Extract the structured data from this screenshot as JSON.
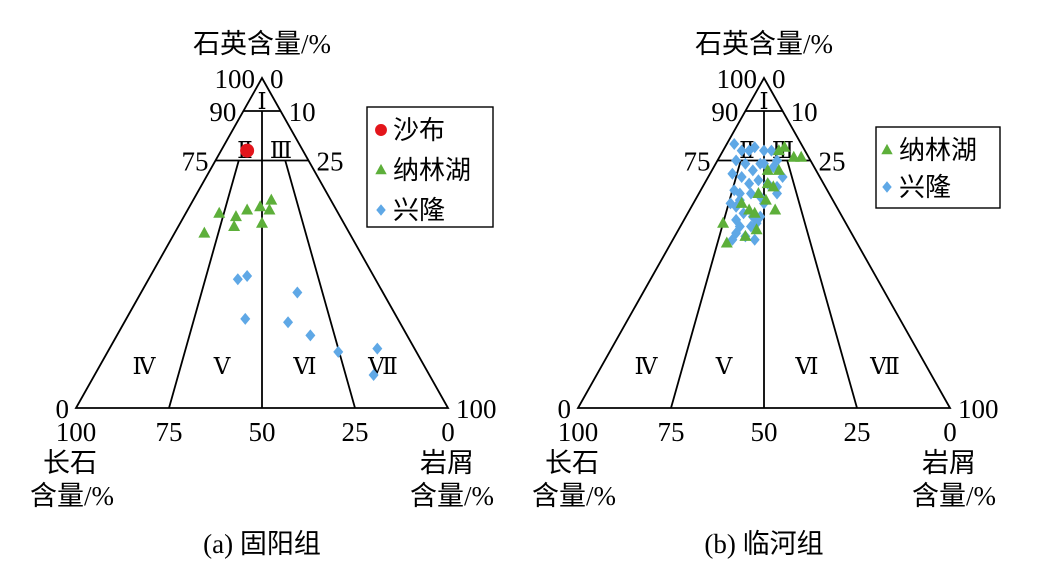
{
  "chart_data": [
    {
      "type": "scatter",
      "projection": "ternary",
      "caption": "(a) 固阳组",
      "apex_label": "石英含量/%",
      "left_label": [
        "长石",
        "含量/%"
      ],
      "right_label": [
        "岩屑",
        "含量/%"
      ],
      "left_ticks": [
        {
          "q": 100,
          "label": "100"
        },
        {
          "q": 90,
          "label": "90"
        },
        {
          "q": 75,
          "label": "75"
        },
        {
          "q": 0,
          "label": "0"
        }
      ],
      "right_ticks": [
        {
          "q": 100,
          "label": "0"
        },
        {
          "q": 90,
          "label": "10"
        },
        {
          "q": 75,
          "label": "25"
        },
        {
          "q": 0,
          "label": "100"
        }
      ],
      "bottom_ticks": [
        {
          "f": 100,
          "label": "100"
        },
        {
          "f": 75,
          "label": "75"
        },
        {
          "f": 50,
          "label": "50"
        },
        {
          "f": 25,
          "label": "25"
        },
        {
          "f": 0,
          "label": "0"
        }
      ],
      "quartz_boundaries": [
        90,
        75
      ],
      "bottom_dividers": [
        75,
        50,
        25
      ],
      "regions": [
        "Ⅰ",
        "Ⅱ",
        "Ⅲ",
        "Ⅳ",
        "Ⅴ",
        "Ⅵ",
        "Ⅶ"
      ],
      "legend_position": "top-right",
      "series": [
        {
          "name": "沙布",
          "marker": "circle",
          "color": "#e3151b",
          "points": [
            {
              "q": 78,
              "f": 15,
              "l": 7
            }
          ]
        },
        {
          "name": "纳林湖",
          "marker": "triangle",
          "color": "#5daf3a",
          "points": [
            {
              "q": 59,
              "f": 32,
              "l": 9
            },
            {
              "q": 58,
              "f": 28,
              "l": 14
            },
            {
              "q": 60,
              "f": 24,
              "l": 16
            },
            {
              "q": 61,
              "f": 20,
              "l": 19
            },
            {
              "q": 63,
              "f": 16,
              "l": 21
            },
            {
              "q": 55,
              "f": 30,
              "l": 15
            },
            {
              "q": 56,
              "f": 22,
              "l": 22
            },
            {
              "q": 53,
              "f": 39,
              "l": 8
            },
            {
              "q": 60,
              "f": 18,
              "l": 22
            }
          ]
        },
        {
          "name": "兴隆",
          "marker": "diamond",
          "color": "#5fa8e6",
          "points": [
            {
              "q": 39,
              "f": 37,
              "l": 24
            },
            {
              "q": 40,
              "f": 34,
              "l": 26
            },
            {
              "q": 35,
              "f": 23,
              "l": 42
            },
            {
              "q": 27,
              "f": 41,
              "l": 32
            },
            {
              "q": 26,
              "f": 30,
              "l": 44
            },
            {
              "q": 22,
              "f": 26,
              "l": 52
            },
            {
              "q": 17,
              "f": 21,
              "l": 62
            },
            {
              "q": 18,
              "f": 10,
              "l": 72
            },
            {
              "q": 10,
              "f": 15,
              "l": 75
            }
          ]
        }
      ]
    },
    {
      "type": "scatter",
      "projection": "ternary",
      "caption": "(b) 临河组",
      "apex_label": "石英含量/%",
      "left_label": [
        "长石",
        "含量/%"
      ],
      "right_label": [
        "岩屑",
        "含量/%"
      ],
      "left_ticks": [
        {
          "q": 100,
          "label": "100"
        },
        {
          "q": 90,
          "label": "90"
        },
        {
          "q": 75,
          "label": "75"
        },
        {
          "q": 0,
          "label": "0"
        }
      ],
      "right_ticks": [
        {
          "q": 100,
          "label": "0"
        },
        {
          "q": 90,
          "label": "10"
        },
        {
          "q": 75,
          "label": "25"
        },
        {
          "q": 0,
          "label": "100"
        }
      ],
      "bottom_ticks": [
        {
          "f": 100,
          "label": "100"
        },
        {
          "f": 75,
          "label": "75"
        },
        {
          "f": 50,
          "label": "50"
        },
        {
          "f": 25,
          "label": "25"
        },
        {
          "f": 0,
          "label": "0"
        }
      ],
      "quartz_boundaries": [
        90,
        75
      ],
      "bottom_dividers": [
        75,
        50,
        25
      ],
      "regions": [
        "Ⅰ",
        "Ⅱ",
        "Ⅲ",
        "Ⅳ",
        "Ⅴ",
        "Ⅵ",
        "Ⅶ"
      ],
      "legend_position": "top-right",
      "series": [
        {
          "name": "纳林湖",
          "marker": "triangle",
          "color": "#5daf3a",
          "points": [
            {
              "q": 78,
              "f": 7,
              "l": 15
            },
            {
              "q": 79,
              "f": 5,
              "l": 16
            },
            {
              "q": 76,
              "f": 2,
              "l": 22
            },
            {
              "q": 76,
              "f": 4,
              "l": 20
            },
            {
              "q": 72,
              "f": 13,
              "l": 15
            },
            {
              "q": 72,
              "f": 10,
              "l": 18
            },
            {
              "q": 68,
              "f": 15,
              "l": 17
            },
            {
              "q": 67,
              "f": 14,
              "l": 19
            },
            {
              "q": 65,
              "f": 19,
              "l": 16
            },
            {
              "q": 63,
              "f": 18,
              "l": 19
            },
            {
              "q": 60,
              "f": 24,
              "l": 16
            },
            {
              "q": 59,
              "f": 23,
              "l": 18
            },
            {
              "q": 56,
              "f": 33,
              "l": 11
            },
            {
              "q": 50,
              "f": 35,
              "l": 15
            },
            {
              "q": 54,
              "f": 25,
              "l": 21
            },
            {
              "q": 52,
              "f": 29,
              "l": 19
            },
            {
              "q": 62,
              "f": 25,
              "l": 13
            },
            {
              "q": 60,
              "f": 17,
              "l": 23
            }
          ]
        },
        {
          "name": "兴隆",
          "marker": "diamond",
          "color": "#5fa8e6",
          "points": [
            {
              "q": 80,
              "f": 18,
              "l": 2
            },
            {
              "q": 78,
              "f": 17,
              "l": 5
            },
            {
              "q": 78,
              "f": 15,
              "l": 7
            },
            {
              "q": 79,
              "f": 13,
              "l": 8
            },
            {
              "q": 78,
              "f": 11,
              "l": 11
            },
            {
              "q": 78,
              "f": 9,
              "l": 13
            },
            {
              "q": 75,
              "f": 9,
              "l": 16
            },
            {
              "q": 75,
              "f": 20,
              "l": 5
            },
            {
              "q": 74,
              "f": 18,
              "l": 8
            },
            {
              "q": 72,
              "f": 17,
              "l": 11
            },
            {
              "q": 74,
              "f": 14,
              "l": 12
            },
            {
              "q": 74,
              "f": 13,
              "l": 13
            },
            {
              "q": 73,
              "f": 11,
              "l": 16
            },
            {
              "q": 70,
              "f": 10,
              "l": 20
            },
            {
              "q": 71,
              "f": 23,
              "l": 6
            },
            {
              "q": 70,
              "f": 21,
              "l": 9
            },
            {
              "q": 68,
              "f": 20,
              "l": 12
            },
            {
              "q": 69,
              "f": 17,
              "l": 14
            },
            {
              "q": 68,
              "f": 15,
              "l": 17
            },
            {
              "q": 67,
              "f": 13,
              "l": 20
            },
            {
              "q": 66,
              "f": 25,
              "l": 9
            },
            {
              "q": 65,
              "f": 24,
              "l": 11
            },
            {
              "q": 65,
              "f": 21,
              "l": 14
            },
            {
              "q": 64,
              "f": 19,
              "l": 17
            },
            {
              "q": 65,
              "f": 14,
              "l": 21
            },
            {
              "q": 62,
              "f": 28,
              "l": 10
            },
            {
              "q": 61,
              "f": 27,
              "l": 12
            },
            {
              "q": 59,
              "f": 26,
              "l": 15
            },
            {
              "q": 58,
              "f": 24,
              "l": 18
            },
            {
              "q": 58,
              "f": 22,
              "l": 20
            },
            {
              "q": 57,
              "f": 29,
              "l": 14
            },
            {
              "q": 55,
              "f": 29,
              "l": 16
            },
            {
              "q": 55,
              "f": 26,
              "l": 19
            },
            {
              "q": 56,
              "f": 24,
              "l": 20
            },
            {
              "q": 53,
              "f": 31,
              "l": 16
            },
            {
              "q": 52,
              "f": 29,
              "l": 19
            },
            {
              "q": 51,
              "f": 33,
              "l": 16
            },
            {
              "q": 51,
              "f": 27,
              "l": 22
            },
            {
              "q": 63,
              "f": 25,
              "l": 12
            },
            {
              "q": 62,
              "f": 19,
              "l": 19
            }
          ]
        }
      ]
    }
  ]
}
